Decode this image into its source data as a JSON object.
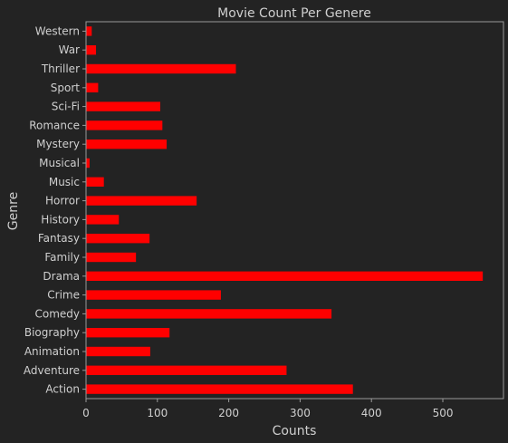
{
  "chart_data": {
    "type": "bar",
    "orientation": "horizontal",
    "title": "Movie Count Per Genere",
    "xlabel": "Counts",
    "ylabel": "Genre",
    "xlim": [
      0,
      585
    ],
    "xticks": [
      0,
      100,
      200,
      300,
      400,
      500
    ],
    "categories": [
      "Action",
      "Adventure",
      "Animation",
      "Biography",
      "Comedy",
      "Crime",
      "Drama",
      "Family",
      "Fantasy",
      "History",
      "Horror",
      "Music",
      "Musical",
      "Mystery",
      "Romance",
      "Sci-Fi",
      "Sport",
      "Thriller",
      "War",
      "Western"
    ],
    "values": [
      374,
      281,
      90,
      117,
      344,
      189,
      556,
      70,
      89,
      46,
      155,
      25,
      5,
      113,
      107,
      104,
      17,
      210,
      14,
      8
    ],
    "bar_color": "#ff0000",
    "background_color": "#232323",
    "grid": false
  }
}
